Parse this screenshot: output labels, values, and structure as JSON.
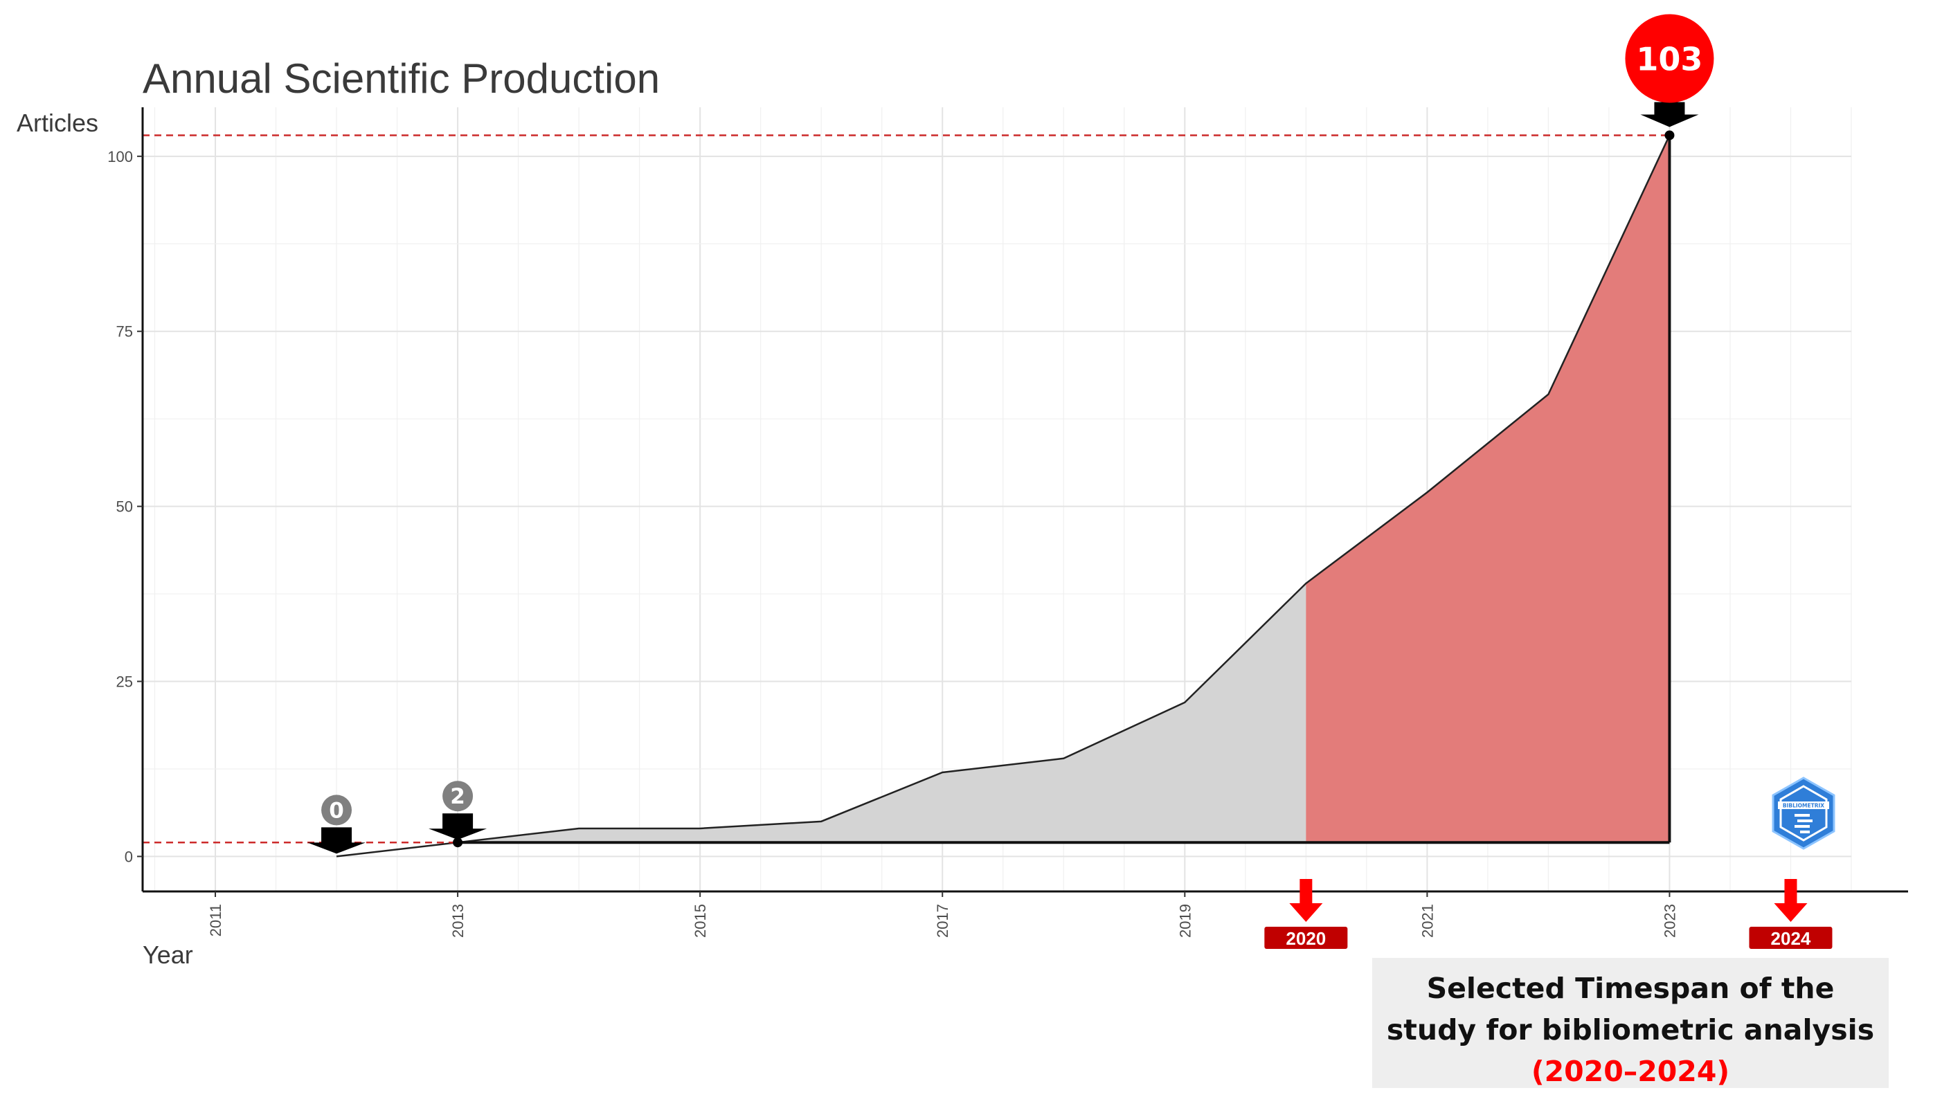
{
  "chart_data": {
    "type": "area",
    "title": "Annual Scientific Production",
    "xlabel": "Year",
    "ylabel": "Articles",
    "x": [
      2012,
      2013,
      2014,
      2015,
      2016,
      2017,
      2018,
      2019,
      2020,
      2021,
      2022,
      2023
    ],
    "values": [
      0,
      2,
      4,
      4,
      5,
      12,
      14,
      22,
      39,
      52,
      66,
      103
    ],
    "xlim": [
      2010.4,
      2024.5
    ],
    "ylim": [
      -5,
      107
    ],
    "x_ticks": [
      "2011",
      "2013",
      "2015",
      "2017",
      "2019",
      "2021",
      "2023"
    ],
    "y_ticks": [
      "0",
      "25",
      "50",
      "75",
      "100"
    ],
    "grid": true,
    "highlight_range": [
      2020,
      2023
    ],
    "reference_lines": [
      2,
      103
    ],
    "callouts": [
      {
        "x": 2012,
        "y": 0,
        "label": "0"
      },
      {
        "x": 2013,
        "y": 2,
        "label": "2"
      },
      {
        "x": 2023,
        "y": 103,
        "label": "103"
      }
    ],
    "timespan_markers": [
      {
        "year": 2020,
        "label": "2020"
      },
      {
        "year": 2024,
        "label": "2024"
      }
    ]
  },
  "annotation": {
    "line1": "Selected Timespan of the",
    "line2": "study for  bibliometric analysis",
    "range": "(2020–2024)"
  },
  "logo_text": "BIBLIOMETRIX",
  "colors": {
    "base_fill": "#d4d4d4",
    "highlight_fill": "#e37c7a",
    "reference_line": "#cc2a2a",
    "callout_grey": "#808080",
    "callout_red": "#ff0000",
    "marker_red": "#ff0000",
    "badge_red": "#c00000",
    "logo_blue": "#2f7ed8"
  }
}
